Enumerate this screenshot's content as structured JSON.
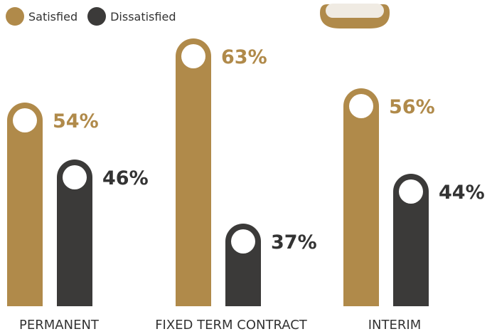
{
  "chart_data": {
    "type": "bar",
    "categories": [
      "PERMANENT",
      "FIXED TERM CONTRACT",
      "INTERIM"
    ],
    "series": [
      {
        "name": "Satisfied",
        "values": [
          54,
          63,
          56
        ],
        "labels": [
          "54%",
          "63%",
          "56%"
        ]
      },
      {
        "name": "Dissatisfied",
        "values": [
          46,
          37,
          44
        ],
        "labels": [
          "46%",
          "37%",
          "44%"
        ]
      }
    ],
    "ylim": [
      0,
      100
    ],
    "title": "",
    "xlabel": "",
    "ylabel": "",
    "grid": false,
    "legend_position": "top-left"
  },
  "colors": {
    "satisfied": "#b08a4a",
    "dissatisfied": "#3b3a39",
    "satisfied_label": "#b08a4a",
    "dissatisfied_label": "#333333",
    "marker_fill": "#ffffff",
    "icon_fill": "#f0ebe3"
  },
  "legend": {
    "items": [
      {
        "label": "Satisfied",
        "color": "#b08a4a"
      },
      {
        "label": "Dissatisfied",
        "color": "#3b3a39"
      }
    ]
  },
  "decoration": {
    "icon": "pill-badge-icon"
  }
}
